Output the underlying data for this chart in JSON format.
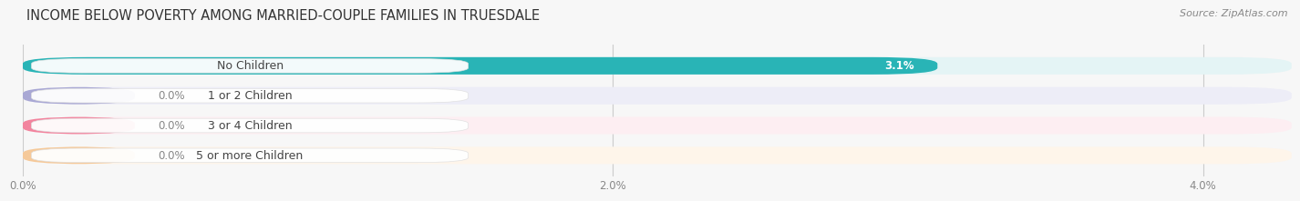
{
  "title": "INCOME BELOW POVERTY AMONG MARRIED-COUPLE FAMILIES IN TRUESDALE",
  "source": "Source: ZipAtlas.com",
  "categories": [
    "No Children",
    "1 or 2 Children",
    "3 or 4 Children",
    "5 or more Children"
  ],
  "values": [
    3.1,
    0.0,
    0.0,
    0.0
  ],
  "bar_colors": [
    "#29b4b6",
    "#a9a8d4",
    "#f2849e",
    "#f5c99a"
  ],
  "bg_colors": [
    "#e4f4f5",
    "#ededf7",
    "#fdeef2",
    "#fef5ea"
  ],
  "xlim": [
    0,
    4.3
  ],
  "xticks": [
    0.0,
    2.0,
    4.0
  ],
  "xtick_labels": [
    "0.0%",
    "2.0%",
    "4.0%"
  ],
  "bar_height": 0.58,
  "title_fontsize": 10.5,
  "label_fontsize": 9,
  "value_fontsize": 8.5,
  "source_fontsize": 8,
  "background_color": "#f7f7f7",
  "grid_color": "#cccccc",
  "zero_bar_width": 0.38
}
